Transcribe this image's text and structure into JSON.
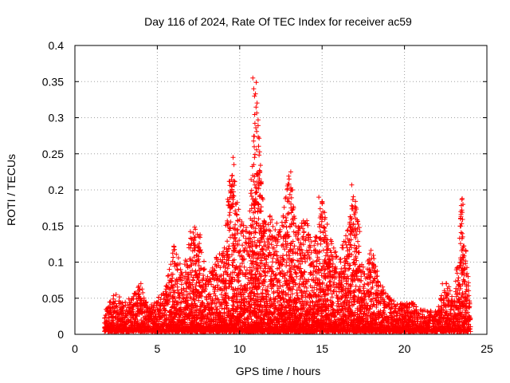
{
  "chart_data": {
    "type": "scatter",
    "title": "Day 116 of 2024, Rate Of TEC Index for receiver ac59",
    "xlabel": "GPS time / hours",
    "ylabel": "ROTI / TECUs",
    "xlim": [
      0,
      25
    ],
    "ylim": [
      0,
      0.4
    ],
    "xticks": [
      "0",
      "5",
      "10",
      "15",
      "20",
      "25"
    ],
    "yticks": [
      "0",
      "0.05",
      "0.1",
      "0.15",
      "0.2",
      "0.25",
      "0.3",
      "0.35",
      "0.4"
    ],
    "grid": true,
    "marker": "+",
    "color": "#ff0000",
    "envelope_hours": [
      1.8,
      2.5,
      3.0,
      3.5,
      4.0,
      4.5,
      5.0,
      5.5,
      6.0,
      6.5,
      7.0,
      7.5,
      8.0,
      8.5,
      9.0,
      9.5,
      10.0,
      10.5,
      11.0,
      11.5,
      12.0,
      12.5,
      13.0,
      13.5,
      14.0,
      14.5,
      15.0,
      15.5,
      16.0,
      16.5,
      17.0,
      17.5,
      18.0,
      18.5,
      19.0,
      19.5,
      20.0,
      20.5,
      21.0,
      21.5,
      22.0,
      22.5,
      23.0,
      23.5,
      24.0
    ],
    "envelope_max_roti": [
      0.03,
      0.055,
      0.04,
      0.05,
      0.07,
      0.035,
      0.045,
      0.06,
      0.12,
      0.09,
      0.14,
      0.15,
      0.08,
      0.1,
      0.12,
      0.24,
      0.16,
      0.14,
      0.35,
      0.16,
      0.16,
      0.14,
      0.22,
      0.15,
      0.16,
      0.12,
      0.19,
      0.13,
      0.1,
      0.14,
      0.2,
      0.09,
      0.12,
      0.07,
      0.05,
      0.04,
      0.04,
      0.04,
      0.03,
      0.03,
      0.03,
      0.07,
      0.05,
      0.19,
      0.03
    ],
    "highlighted_points": [
      {
        "x": 10.8,
        "y": 0.355
      },
      {
        "x": 10.85,
        "y": 0.34
      },
      {
        "x": 10.9,
        "y": 0.33
      },
      {
        "x": 9.6,
        "y": 0.245
      },
      {
        "x": 9.65,
        "y": 0.235
      },
      {
        "x": 9.55,
        "y": 0.22
      },
      {
        "x": 10.9,
        "y": 0.245
      },
      {
        "x": 10.85,
        "y": 0.235
      },
      {
        "x": 10.8,
        "y": 0.22
      },
      {
        "x": 13.1,
        "y": 0.225
      },
      {
        "x": 13.0,
        "y": 0.215
      },
      {
        "x": 13.2,
        "y": 0.2
      },
      {
        "x": 14.8,
        "y": 0.19
      },
      {
        "x": 16.8,
        "y": 0.207
      },
      {
        "x": 23.5,
        "y": 0.188
      },
      {
        "x": 23.55,
        "y": 0.18
      },
      {
        "x": 23.4,
        "y": 0.16
      },
      {
        "x": 22.3,
        "y": 0.07
      }
    ]
  }
}
